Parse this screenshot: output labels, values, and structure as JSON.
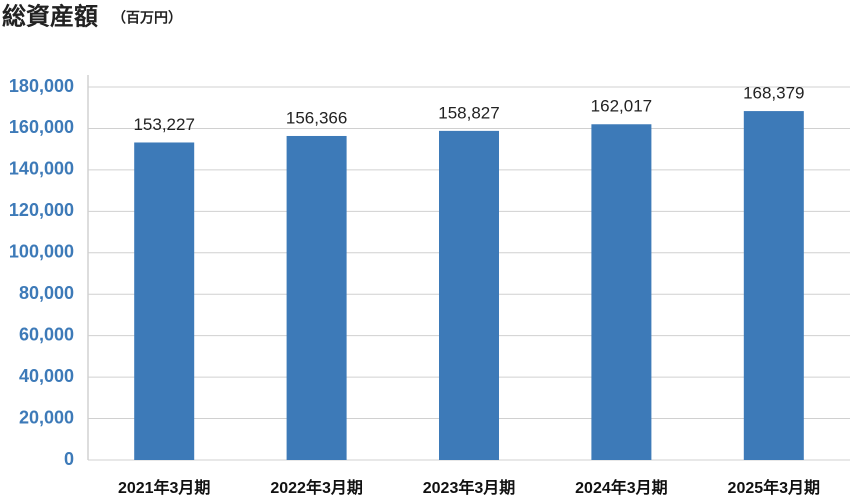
{
  "chart_data": {
    "type": "bar",
    "title": "総資産額",
    "subtitle": "（百万円）",
    "categories": [
      "2021年3月期",
      "2022年3月期",
      "2023年3月期",
      "2024年3月期",
      "2025年3月期"
    ],
    "values": [
      153227,
      156366,
      158827,
      162017,
      168379
    ],
    "value_labels": [
      "153,227",
      "156,366",
      "158,827",
      "162,017",
      "168,379"
    ],
    "color": "#3d7ab8",
    "ylim": [
      0,
      180000
    ],
    "yticks": [
      0,
      {
        "value": 20000,
        "label": "20,000"
      },
      {
        "value": 40000,
        "label": "40,000"
      },
      {
        "value": 60000,
        "label": "60,000"
      },
      {
        "value": 80000,
        "label": "80,000"
      },
      {
        "value": 100000,
        "label": "100,000"
      },
      {
        "value": 120000,
        "label": "120,000"
      },
      {
        "value": 140000,
        "label": "140,000"
      },
      {
        "value": 160000,
        "label": "160,000"
      },
      {
        "value": 180000,
        "label": "180,000"
      }
    ],
    "grid": true
  }
}
